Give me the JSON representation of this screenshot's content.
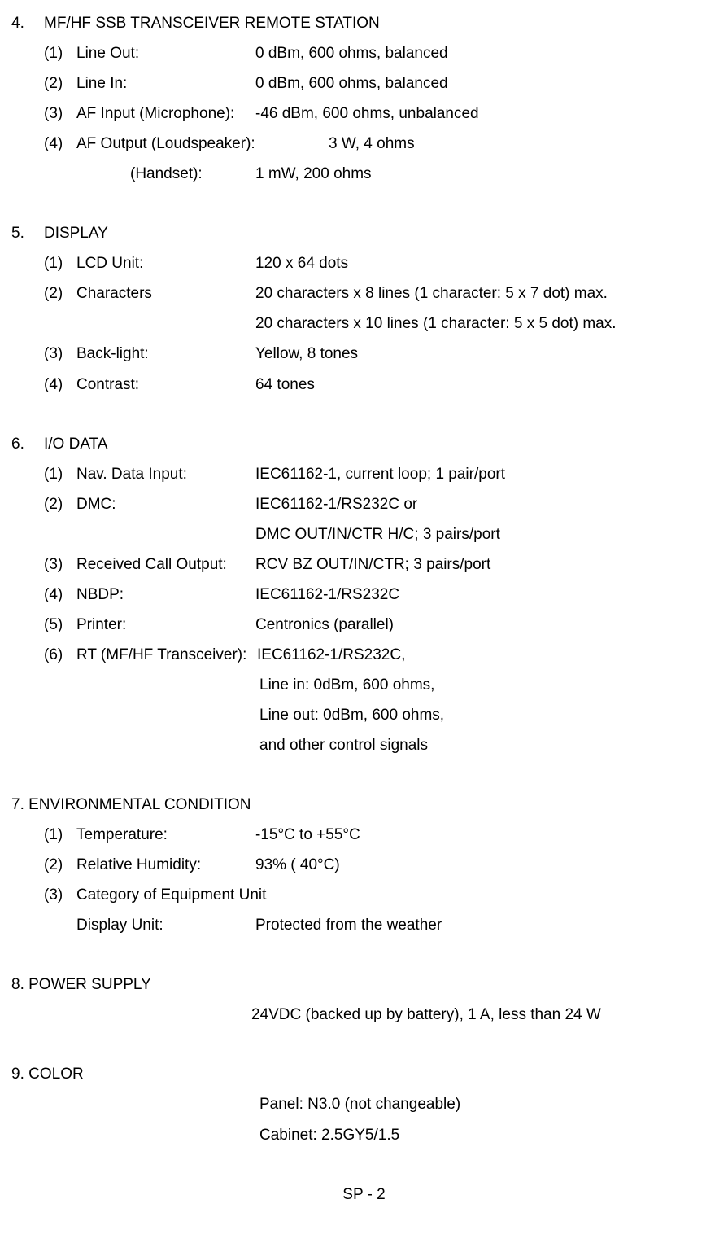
{
  "s4": {
    "num": "4.",
    "title": "MF/HF SSB TRANSCEIVER REMOTE STATION",
    "items": [
      {
        "n": "(1)",
        "label": "Line Out:",
        "value": "0 dBm, 600 ohms, balanced"
      },
      {
        "n": "(2)",
        "label": "Line In:",
        "value": "0 dBm, 600 ohms, balanced"
      },
      {
        "n": "(3)",
        "label": "AF Input (Microphone):",
        "value": "-46 dBm, 600 ohms, unbalanced"
      }
    ],
    "afout_n": "(4)",
    "afout_label": "AF Output (Loudspeaker):",
    "afout_value": "3 W, 4 ohms",
    "handset_label": "(Handset):",
    "handset_value": "1 mW, 200 ohms"
  },
  "s5": {
    "num": "5.",
    "title": "DISPLAY",
    "i1": {
      "n": "(1)",
      "label": "LCD Unit:",
      "value": "120 x 64 dots"
    },
    "i2": {
      "n": "(2)",
      "label": "Characters",
      "value": "20 characters x 8 lines (1 character: 5 x 7 dot) max."
    },
    "i2b": "20 characters x 10 lines (1 character: 5 x 5 dot) max.",
    "i3": {
      "n": "(3)",
      "label": "Back-light:",
      "value": "Yellow, 8 tones"
    },
    "i4": {
      "n": "(4)",
      "label": "Contrast:",
      "value": "64 tones"
    }
  },
  "s6": {
    "num": "6.",
    "title": "I/O DATA",
    "i1": {
      "n": "(1)",
      "label": "Nav. Data Input:",
      "value": "IEC61162-1, current loop; 1 pair/port"
    },
    "i2": {
      "n": "(2)",
      "label": "DMC:",
      "value": "IEC61162-1/RS232C or"
    },
    "i2b": "DMC OUT/IN/CTR H/C; 3 pairs/port",
    "i3": {
      "n": "(3)",
      "label": "Received Call Output:",
      "value": "RCV BZ OUT/IN/CTR; 3 pairs/port"
    },
    "i4": {
      "n": "(4)",
      "label": "NBDP:",
      "value": "IEC61162-1/RS232C"
    },
    "i5": {
      "n": "(5)",
      "label": "Printer:",
      "value": "Centronics (parallel)"
    },
    "i6": {
      "n": "(6)",
      "label": "RT (MF/HF Transceiver):",
      "value": "IEC61162-1/RS232C,"
    },
    "i6b": "Line in: 0dBm, 600 ohms,",
    "i6c": "Line out: 0dBm, 600 ohms,",
    "i6d": "and other control signals"
  },
  "s7": {
    "title": "7. ENVIRONMENTAL CONDITION",
    "i1": {
      "n": "(1)",
      "label": "Temperature:",
      "value": "-15°C to +55°C"
    },
    "i2": {
      "n": "(2)",
      "label": "Relative Humidity:",
      "value": "93% ( 40°C)"
    },
    "i3": {
      "n": "(3)",
      "label": "Category of Equipment Unit"
    },
    "du_label": "Display Unit:",
    "du_value": "Protected from the weather"
  },
  "s8": {
    "title": "8. POWER SUPPLY",
    "value": "24VDC (backed up by battery), 1 A, less than 24 W"
  },
  "s9": {
    "title": "9. COLOR",
    "v1": "Panel: N3.0 (not changeable)",
    "v2": "Cabinet: 2.5GY5/1.5"
  },
  "footer": "SP - 2"
}
